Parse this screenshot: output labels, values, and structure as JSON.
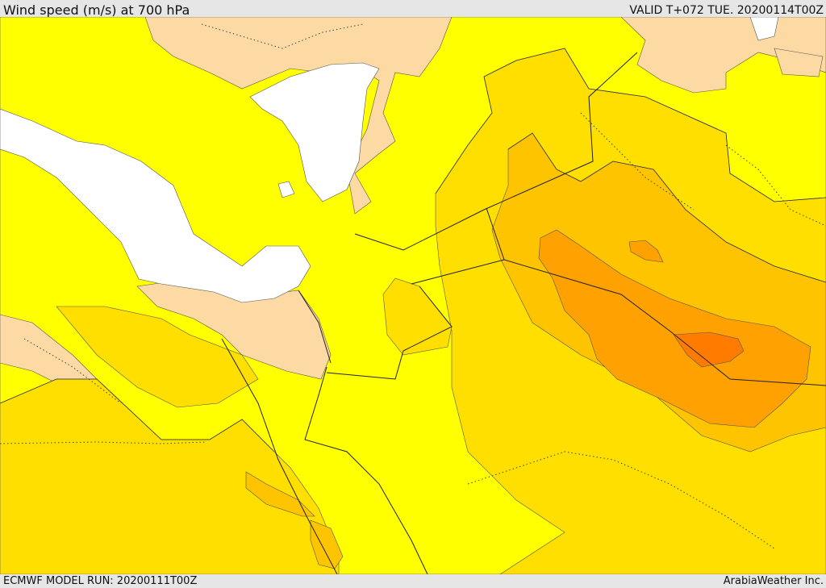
{
  "header": {
    "title": "Wind speed (m/s) at 700 hPa",
    "valid": "VALID T+072 TUE. 20200114T00Z"
  },
  "footer": {
    "model_run": "ECMWF MODEL RUN: 20200111T00Z",
    "provider": "ArabiaWeather Inc."
  },
  "map": {
    "colors": {
      "calm_white": "#ffffff",
      "very_low": "#fdd9a4",
      "low": "#ffff00",
      "moderate": "#ffdf00",
      "elevated": "#ffc400",
      "high": "#ffa100",
      "very_high": "#ff7c00"
    }
  }
}
